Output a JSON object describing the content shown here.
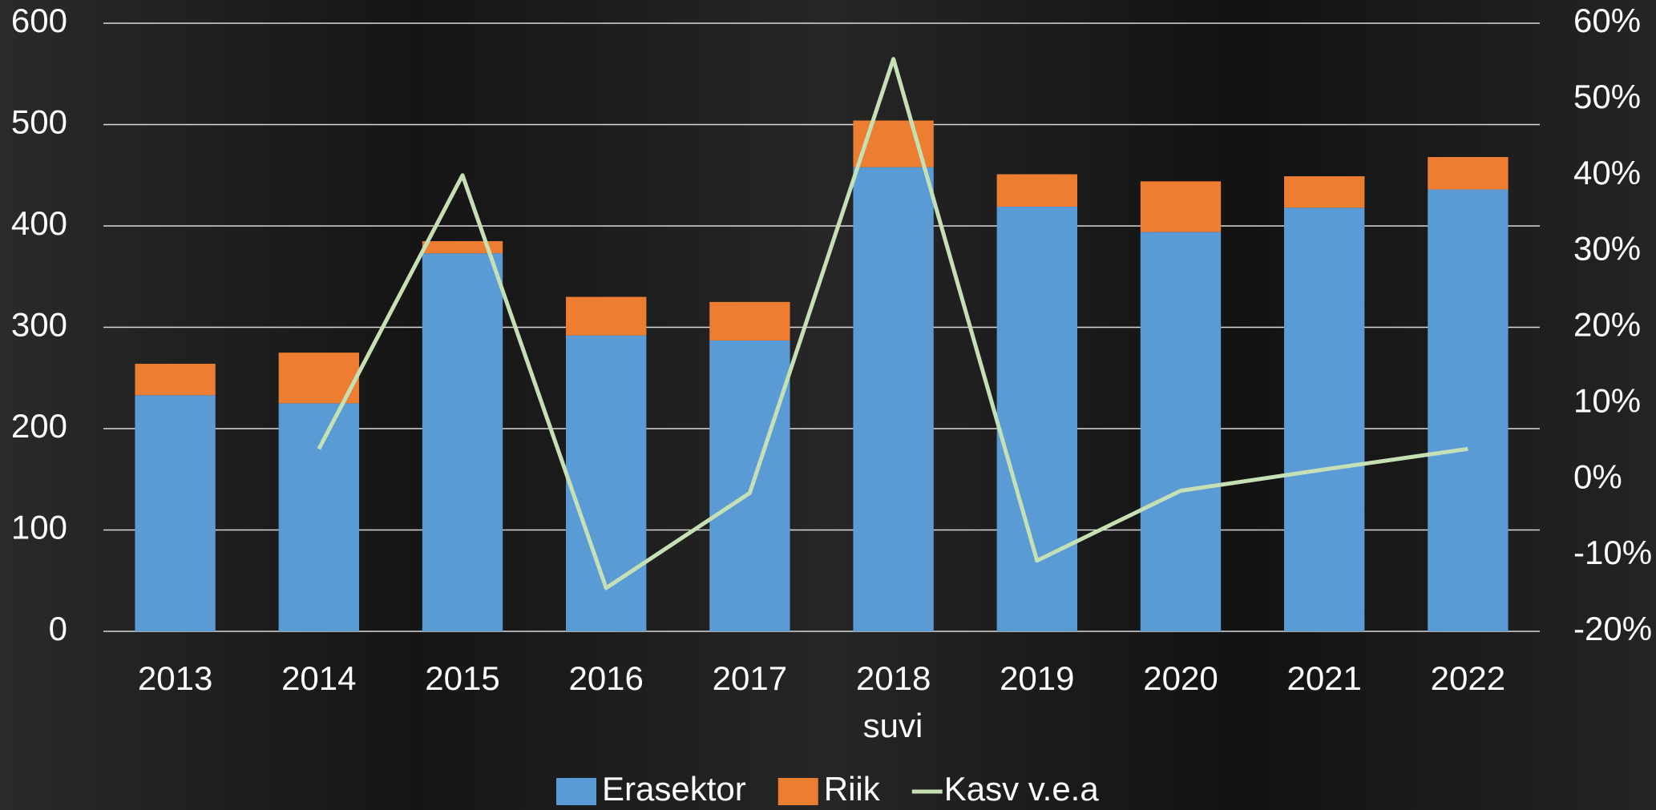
{
  "chart_data": {
    "type": "bar",
    "stacked": true,
    "x_label": "suvi",
    "categories": [
      "2013",
      "2014",
      "2015",
      "2016",
      "2017",
      "2018",
      "2019",
      "2020",
      "2021",
      "2022"
    ],
    "series": [
      {
        "name": "Erasektor",
        "color": "#5b9bd5",
        "values": [
          233,
          225,
          373,
          292,
          287,
          458,
          419,
          394,
          418,
          436
        ]
      },
      {
        "name": "Riik",
        "color": "#ed7d31",
        "values": [
          31,
          50,
          12,
          38,
          38,
          46,
          32,
          50,
          31,
          32
        ]
      },
      {
        "name": "Kasv v.e.a",
        "type": "line",
        "axis": "y2",
        "color": "#c5e0b4",
        "values": [
          null,
          4.0,
          40,
          -14.3,
          -1.8,
          55.3,
          -10.7,
          -1.5,
          1.3,
          4.0
        ]
      }
    ],
    "ylim": [
      0,
      600
    ],
    "yticks": [
      0,
      100,
      200,
      300,
      400,
      500,
      600
    ],
    "y2lim": [
      -20,
      60
    ],
    "y2ticks": [
      {
        "value": -20,
        "label": "-20%"
      },
      {
        "value": -10,
        "label": "-10%"
      },
      {
        "value": 0,
        "label": "0%"
      },
      {
        "value": 10,
        "label": "10%"
      },
      {
        "value": 20,
        "label": "20%"
      },
      {
        "value": 30,
        "label": "30%"
      },
      {
        "value": 40,
        "label": "40%"
      },
      {
        "value": 50,
        "label": "50%"
      },
      {
        "value": 60,
        "label": "60%"
      }
    ],
    "grid": true,
    "legend": "bottom"
  }
}
